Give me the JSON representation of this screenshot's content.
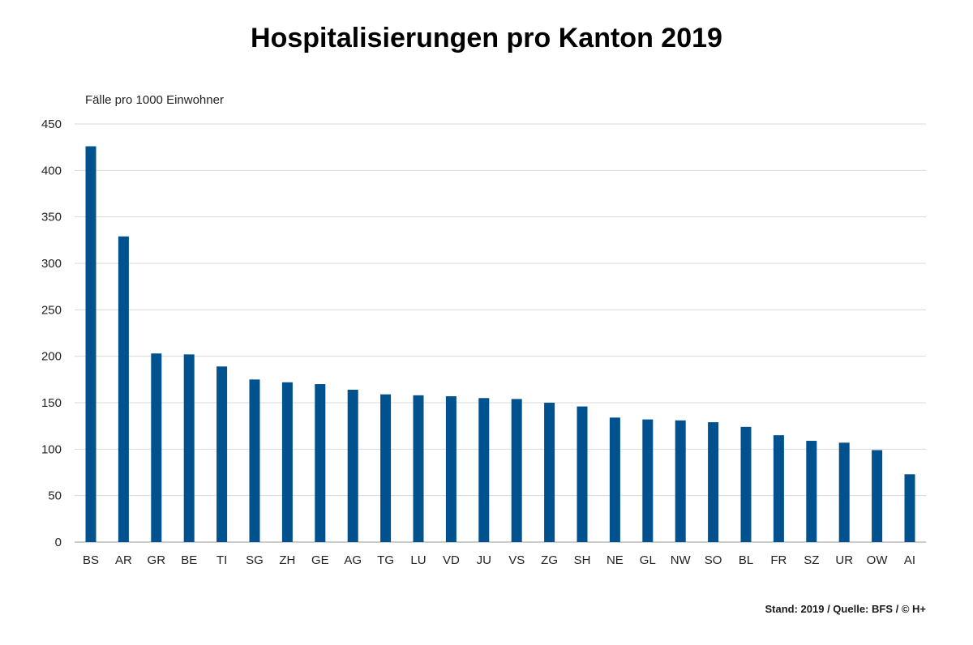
{
  "title": "Hospitalisierungen pro Kanton 2019",
  "footer": "Stand: 2019 / Quelle: BFS / © H+",
  "colors": {
    "bar": "#00528f",
    "grid": "#d9d9d9",
    "axis": "#999999"
  },
  "chart_data": {
    "type": "bar",
    "title": "Hospitalisierungen pro Kanton 2019",
    "ylabel": "Fälle pro 1000 Einwohner",
    "xlabel": "",
    "ylim": [
      0,
      450
    ],
    "yticks": [
      0,
      50,
      100,
      150,
      200,
      250,
      300,
      350,
      400,
      450
    ],
    "grid": true,
    "categories": [
      "BS",
      "AR",
      "GR",
      "BE",
      "TI",
      "SG",
      "ZH",
      "GE",
      "AG",
      "TG",
      "LU",
      "VD",
      "JU",
      "VS",
      "ZG",
      "SH",
      "NE",
      "GL",
      "NW",
      "SO",
      "BL",
      "FR",
      "SZ",
      "UR",
      "OW",
      "AI"
    ],
    "values": [
      426,
      329,
      203,
      202,
      189,
      175,
      172,
      170,
      164,
      159,
      158,
      157,
      155,
      154,
      150,
      146,
      134,
      132,
      131,
      129,
      124,
      115,
      109,
      107,
      99,
      73
    ]
  }
}
